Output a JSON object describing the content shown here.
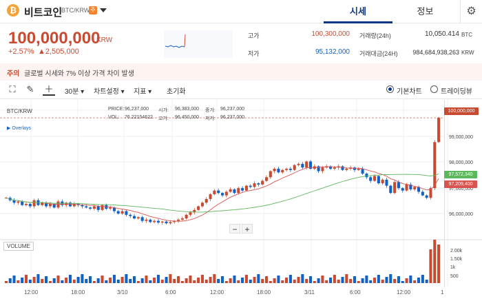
{
  "header": {
    "coin_icon": "₿",
    "coin_name": "비트코인",
    "pair": "BTC/KRW",
    "warn_badge": "주",
    "tabs": [
      {
        "label": "시세"
      },
      {
        "label": "정보"
      }
    ],
    "settings_icon": "gear-icon"
  },
  "ticker": {
    "price": "100,000,000",
    "unit": "KRW",
    "change_rate": "+2.57%",
    "change_amount": "▲2,505,000",
    "high_label": "고가",
    "high_value": "100,300,000",
    "low_label": "저가",
    "low_value": "95,132,000",
    "volume_label": "거래량(24h)",
    "volume_value": "10,050.414",
    "volume_unit": "BTC",
    "amount_label": "거래대금(24H)",
    "amount_value": "984,684,938,263",
    "amount_unit": "KRW"
  },
  "notice": {
    "tag": "주의",
    "text": "글로벌 시세와 7% 이상 가격 차이 발생"
  },
  "toolbar": {
    "interval": "30분 ▾",
    "chart_settings": "차트설정 ▾",
    "indicator": "지표 ▾",
    "reset": "초기화",
    "basic_chart": "기본차트",
    "trading_view": "트레이딩뷰"
  },
  "chart": {
    "symbol": "BTC/KRW",
    "overlays": "▶ Overlays",
    "price_key": "PRICE:",
    "price_val": "96,237,000",
    "open_key": "시가:",
    "open_val": "96,383,000",
    "close_key": "종가:",
    "close_val": "96,237,000",
    "vol_key": "VOL:",
    "vol_val": "76.22154622",
    "high_key": "고가:",
    "high_val": "96,450,000",
    "low_key": "저가:",
    "low_val": "96,237,000",
    "volume_label": "VOLUME",
    "zoom_minus": "−",
    "zoom_plus": "+",
    "yticks": [
      "99,000,000",
      "98,000,000",
      "97,000,000",
      "96,000,000"
    ],
    "tag_current": "100,000,000",
    "tag_green": "97,572,340",
    "tag_red": "97,209,400",
    "vol_ticks": [
      "2.00k",
      "1.50k",
      "1k",
      "500"
    ],
    "xticks": [
      "12:00",
      "18:00",
      "3/10",
      "6:00",
      "12:00",
      "18:00",
      "3/11",
      "6:00",
      "12:00",
      "1"
    ],
    "colors": {
      "up": "#c84a31",
      "down": "#1261c4",
      "ma_red": "#d9534f",
      "ma_green": "#5cb85c"
    }
  },
  "chart_data": {
    "type": "candlestick",
    "ylim": [
      95200000,
      100400000
    ],
    "closes": [
      96700000,
      96600000,
      96500000,
      96550000,
      96400000,
      96450000,
      96350000,
      96600000,
      96400000,
      96500000,
      96350000,
      96450000,
      96300000,
      96550000,
      96400000,
      96500000,
      96350000,
      96450000,
      96400000,
      96350000,
      96300000,
      96250000,
      96350000,
      96200000,
      96400000,
      96250000,
      96300000,
      96150000,
      96050000,
      96150000,
      96000000,
      95950000,
      95850000,
      95900000,
      95750000,
      95800000,
      95700000,
      95750000,
      95680000,
      95720000,
      95650000,
      95700000,
      95750000,
      95800000,
      95850000,
      96000000,
      96100000,
      96200000,
      96350000,
      96500000,
      96650000,
      96850000,
      97000000,
      96900000,
      96800000,
      96950000,
      97050000,
      96900000,
      97100000,
      97000000,
      97200000,
      97150000,
      97300000,
      97250000,
      97400000,
      97550000,
      97800000,
      97900000,
      97750000,
      97850000,
      97900000,
      97850000,
      98050000,
      98100000,
      97950000,
      98200000,
      97900000,
      98000000,
      97800000,
      97950000,
      98000000,
      97900000,
      97950000,
      98000000,
      97850000,
      97900000,
      97950000,
      97850000,
      97900000,
      97700000,
      97550000,
      97400000,
      97600000,
      97300000,
      97450000,
      97200000,
      96900000,
      97350000,
      97100000,
      97000000,
      97250000,
      97050000,
      97150000,
      96950000,
      96800000,
      96700000,
      97100000,
      99000000,
      100000000
    ]
  }
}
